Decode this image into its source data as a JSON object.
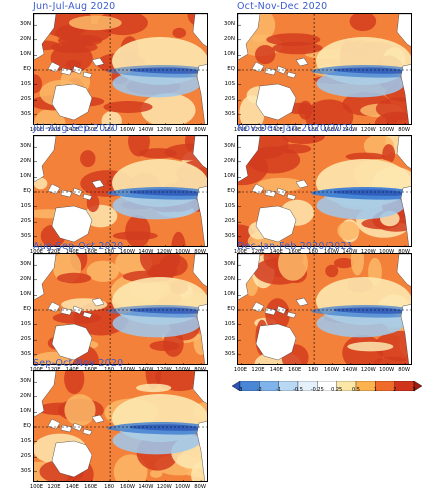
{
  "panels": [
    {
      "title": "Jun-Jul-Aug 2020"
    },
    {
      "title": "Oct-Nov-Dec 2020"
    },
    {
      "title": "Jul-Aug-Sep 2020"
    },
    {
      "title": "Nov-Dec-Jan 2020/2021"
    },
    {
      "title": "Aug-Sep-Oct 2020"
    },
    {
      "title": "Dec-Jan-Feb 2020/2021"
    },
    {
      "title": "Sep-Oct-Nov 2020"
    }
  ],
  "lat_labels": [
    "30N",
    "20N",
    "10N",
    "EQ",
    "10S",
    "20S",
    "30S"
  ],
  "lon_labels": [
    "100E",
    "120E",
    "140E",
    "160E",
    "180",
    "160W",
    "140W",
    "120W",
    "100W",
    "80W"
  ],
  "colorbar": {
    "labels": [
      "-3",
      "-2",
      "-1",
      "-0.5",
      "-0.25",
      "0.25",
      "0.5",
      "1",
      "2",
      "3"
    ],
    "colors": [
      "#2b55b8",
      "#4a86d6",
      "#7fb3ea",
      "#b9d8f4",
      "#e4f0fb",
      "#ffffff",
      "#fde7a6",
      "#fcb24f",
      "#f06a2a",
      "#d1341c",
      "#9e1a12"
    ]
  },
  "palette": {
    "ocean_warm": "#f4813a",
    "ocean_hot": "#d23c1e",
    "ocean_mild": "#fbb869",
    "ocean_pale": "#fde8b0",
    "ocean_cool": "#9ec9ef",
    "ocean_cold": "#3f7fd2",
    "land": "#ffffff",
    "title_color": "#3b5ccf"
  }
}
